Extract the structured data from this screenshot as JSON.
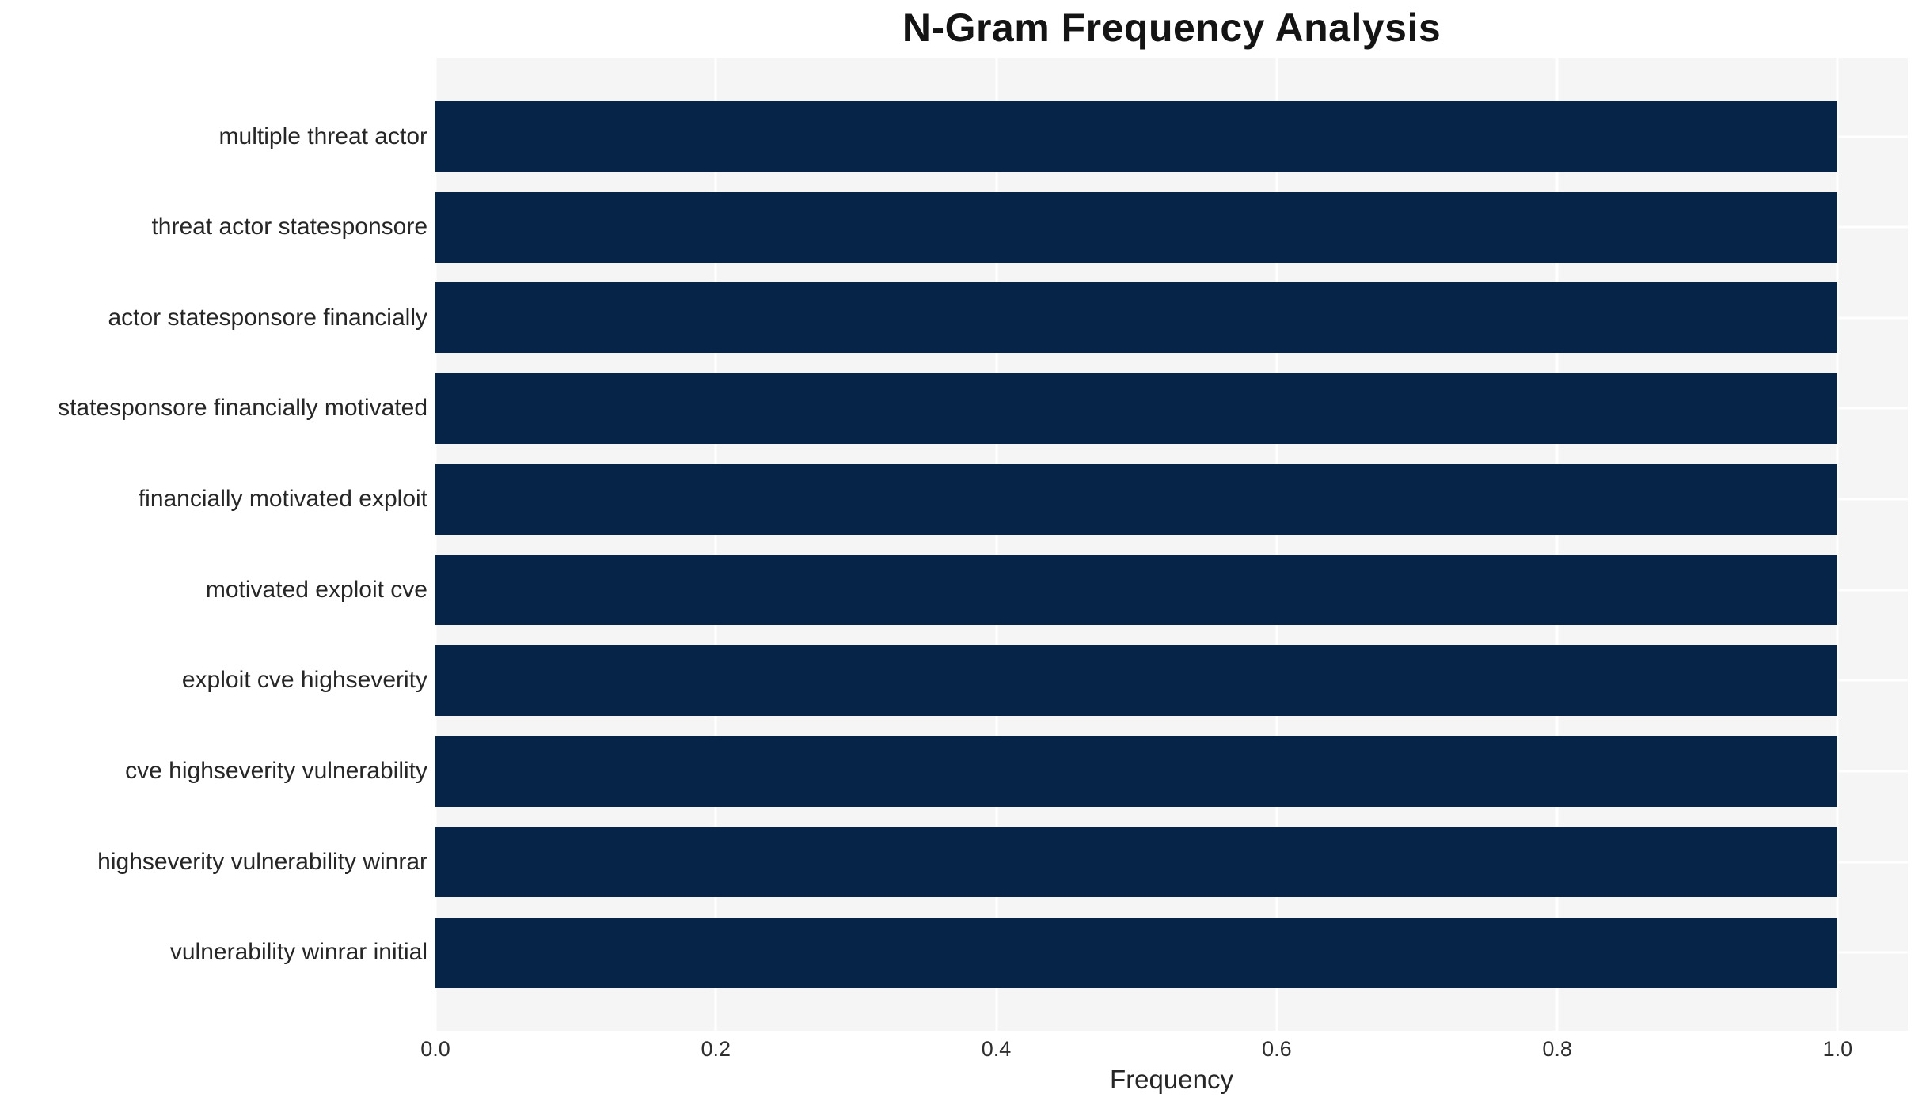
{
  "chart_data": {
    "type": "bar",
    "orientation": "horizontal",
    "title": "N-Gram Frequency Analysis",
    "xlabel": "Frequency",
    "ylabel": "",
    "categories": [
      "multiple threat actor",
      "threat actor statesponsore",
      "actor statesponsore financially",
      "statesponsore financially motivated",
      "financially motivated exploit",
      "motivated exploit cve",
      "exploit cve highseverity",
      "cve highseverity vulnerability",
      "highseverity vulnerability winrar",
      "vulnerability winrar initial"
    ],
    "values": [
      1.0,
      1.0,
      1.0,
      1.0,
      1.0,
      1.0,
      1.0,
      1.0,
      1.0,
      1.0
    ],
    "xlim": [
      0,
      1.05
    ],
    "x_ticks": [
      0.0,
      0.2,
      0.4,
      0.6,
      0.8,
      1.0
    ],
    "x_tick_labels": [
      "0.0",
      "0.2",
      "0.4",
      "0.6",
      "0.8",
      "1.0"
    ],
    "grid": true,
    "legend": false
  },
  "colors": {
    "bar": "#062447",
    "plot_background": "#f5f5f6",
    "gridline": "#ffffff",
    "figure_background": "#ffffff",
    "title_text": "#141414",
    "label_text": "#262626",
    "tick_text": "#2e2e2e"
  }
}
